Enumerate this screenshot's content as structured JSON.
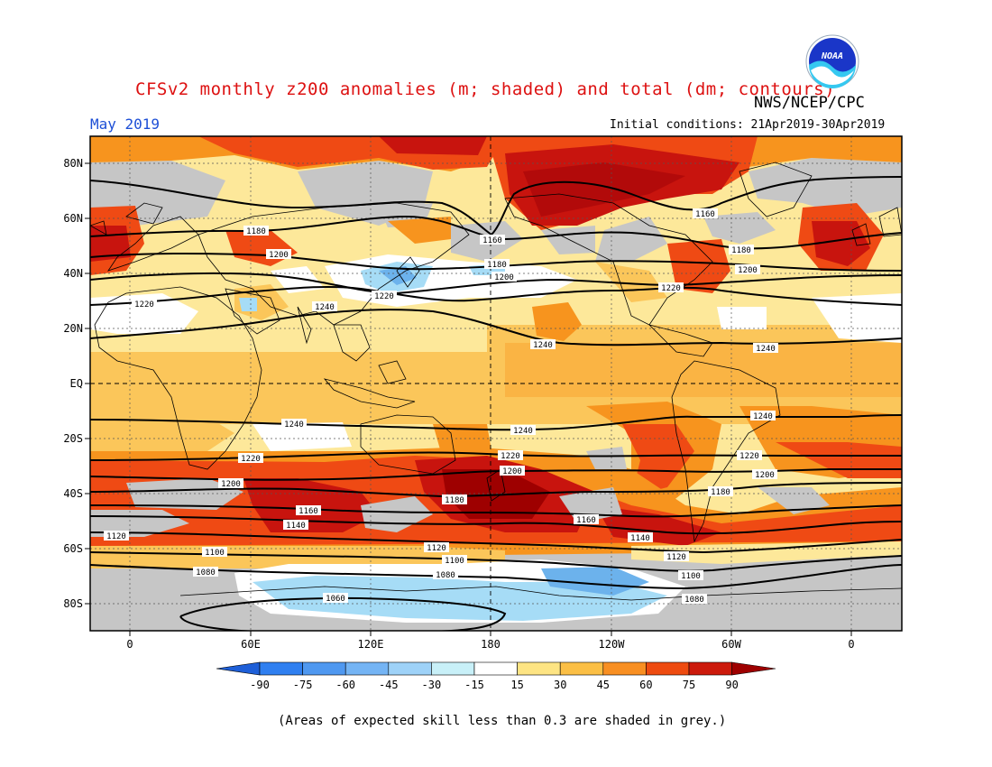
{
  "header": {
    "title": "CFSv2 monthly z200 anomalies (m; shaded) and total (dm; contours)",
    "org": "NWS/NCEP/CPC",
    "month": "May 2019",
    "initial_conditions": "Initial conditions: 21Apr2019-30Apr2019",
    "logo_text": "NOAA"
  },
  "map": {
    "lat_ticks": [
      "80N",
      "60N",
      "40N",
      "20N",
      "EQ",
      "20S",
      "40S",
      "60S",
      "80S"
    ],
    "lon_ticks": [
      "0",
      "60E",
      "120E",
      "180",
      "120W",
      "60W",
      "0"
    ],
    "contour_labels": [
      "1180",
      "1200",
      "1220",
      "1240",
      "1160",
      "1180",
      "1200",
      "1220",
      "1240",
      "1160",
      "1180",
      "1200",
      "1220",
      "1240",
      "1240",
      "1240",
      "1240",
      "1220",
      "1200",
      "1220",
      "1200",
      "1180",
      "1160",
      "1140",
      "1120",
      "1100",
      "1080",
      "1060",
      "1120",
      "1100",
      "1080",
      "1160",
      "1140",
      "1120",
      "1100",
      "1080",
      "1220",
      "1200",
      "1180",
      "1120"
    ]
  },
  "colorbar": {
    "labels": [
      "-90",
      "-75",
      "-60",
      "-45",
      "-30",
      "-15",
      "15",
      "30",
      "45",
      "60",
      "75",
      "90"
    ],
    "colors": [
      "#1e5fd8",
      "#2f7ff0",
      "#4f98f0",
      "#74b4f4",
      "#9ed2f8",
      "#c8f0f8",
      "#ffffff",
      "#fde483",
      "#fbbf45",
      "#f88f22",
      "#ee4b10",
      "#cc1a0c",
      "#9e0000"
    ]
  },
  "footer": {
    "note": "(Areas of expected skill less than 0.3 are shaded in grey.)"
  },
  "palette": {
    "grey": "#c6c6c6",
    "pale_yellow": "#fde89a",
    "yellow": "#fbc65a",
    "orange": "#f7941e",
    "red_orange": "#ef4a14",
    "red": "#c8140e",
    "dark_red": "#9e0000",
    "white": "#ffffff",
    "light_blue": "#a6dcf6",
    "blue": "#6cb2ec"
  }
}
